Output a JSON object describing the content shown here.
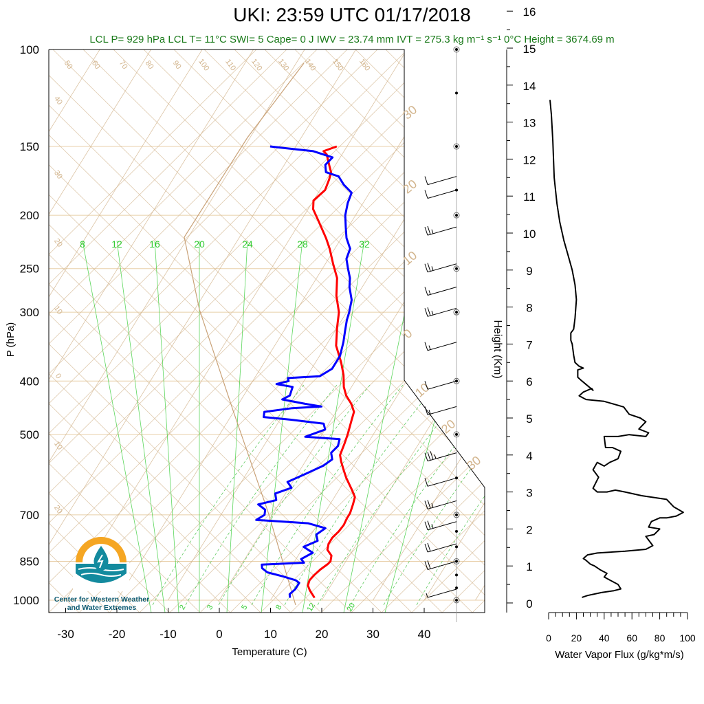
{
  "title": "UKI: 23:59 UTC 01/17/2018",
  "subtitle": "LCL P= 929 hPa  LCL T= 11°C  SWI= 5  Cape= 0 J  IWV = 23.74 mm  IVT = 275.3 kg m⁻¹ s⁻¹  0°C Height = 3674.69 m",
  "logo": {
    "line1": "Center for Western Weather",
    "line2": "and Water Extremes"
  },
  "colors": {
    "temperature": "#ff0000",
    "dewpoint": "#0000ff",
    "mixing_ratio": "#33cc33",
    "dry_adiabat": "#d2b48c",
    "flux": "#000000"
  },
  "chart_data": [
    {
      "type": "line",
      "title": "UKI: 23:59 UTC 01/17/2018",
      "xlabel": "Temperature (C)",
      "ylabel": "P (hPa)",
      "x_ticks": [
        "-30",
        "-20",
        "-10",
        "0",
        "10",
        "20",
        "30",
        "40"
      ],
      "y_ticks": [
        {
          "p": 100,
          "label": "100"
        },
        {
          "p": 150,
          "label": "150"
        },
        {
          "p": 200,
          "label": "200"
        },
        {
          "p": 250,
          "label": "250"
        },
        {
          "p": 300,
          "label": "300"
        },
        {
          "p": 400,
          "label": "400"
        },
        {
          "p": 500,
          "label": "500"
        },
        {
          "p": 700,
          "label": "700"
        },
        {
          "p": 850,
          "label": "850"
        },
        {
          "p": 1000,
          "label": "1000"
        }
      ],
      "ylim": [
        1000,
        100
      ],
      "xlim": [
        -35,
        50
      ],
      "isotherm_labels": [
        "50",
        "60",
        "70",
        "80",
        "90",
        "100",
        "110",
        "120",
        "130",
        "140",
        "150",
        "160"
      ],
      "isotherm_left_labels": [
        "40",
        "30",
        "20",
        "10",
        "0",
        "10",
        "20"
      ],
      "isotherm_right_labels": [
        "30",
        "20",
        "10",
        "0",
        "10",
        "20",
        "30"
      ],
      "mixing_ratio_top_labels": [
        "8",
        "12",
        "16",
        "20",
        "24",
        "28",
        "32"
      ],
      "mixing_ratio_bottom_labels": [
        "2",
        "3",
        "5",
        "8",
        "12",
        "20"
      ],
      "series": [
        {
          "name": "Temperature",
          "points": [
            [
              18.3,
              990
            ],
            [
              16.5,
              960
            ],
            [
              15.5,
              940
            ],
            [
              15.2,
              920
            ],
            [
              15.5,
              900
            ],
            [
              16.0,
              880
            ],
            [
              16.8,
              860
            ],
            [
              17.0,
              850
            ],
            [
              16.5,
              830
            ],
            [
              15.0,
              810
            ],
            [
              14.5,
              790
            ],
            [
              14.5,
              770
            ],
            [
              15.0,
              750
            ],
            [
              15.2,
              730
            ],
            [
              15.0,
              710
            ],
            [
              15.0,
              695
            ],
            [
              14.5,
              670
            ],
            [
              14.0,
              650
            ],
            [
              12.5,
              630
            ],
            [
              10.0,
              600
            ],
            [
              8.5,
              580
            ],
            [
              7.0,
              560
            ],
            [
              6.0,
              545
            ],
            [
              5.5,
              520
            ],
            [
              5.0,
              500
            ],
            [
              4.0,
              470
            ],
            [
              3.5,
              455
            ],
            [
              2.0,
              440
            ],
            [
              0.0,
              425
            ],
            [
              -1.5,
              410
            ],
            [
              -3.0,
              390
            ],
            [
              -5.0,
              370
            ],
            [
              -8.0,
              345
            ],
            [
              -10.0,
              320
            ],
            [
              -11.5,
              300
            ],
            [
              -14.0,
              280
            ],
            [
              -16.0,
              260
            ],
            [
              -18.5,
              245
            ],
            [
              -21.0,
              230
            ],
            [
              -23.0,
              220
            ],
            [
              -26.5,
              205
            ],
            [
              -29.0,
              195
            ],
            [
              -30.0,
              188
            ],
            [
              -29.0,
              180
            ],
            [
              -29.5,
              172
            ],
            [
              -30.0,
              167
            ],
            [
              -31.0,
              163
            ],
            [
              -33.0,
              155
            ],
            [
              -34.0,
              153
            ],
            [
              -32.0,
              150
            ]
          ]
        },
        {
          "name": "Dew Point",
          "points": [
            [
              13.5,
              990
            ],
            [
              13.0,
              975
            ],
            [
              13.5,
              955
            ],
            [
              13.5,
              930
            ],
            [
              12.5,
              920
            ],
            [
              9.5,
              905
            ],
            [
              6.0,
              890
            ],
            [
              4.5,
              875
            ],
            [
              4.0,
              862
            ],
            [
              12.0,
              855
            ],
            [
              11.0,
              842
            ],
            [
              12.5,
              820
            ],
            [
              10.0,
              800
            ],
            [
              12.0,
              780
            ],
            [
              11.0,
              760
            ],
            [
              12.0,
              740
            ],
            [
              8.0,
              725
            ],
            [
              3.0,
              720
            ],
            [
              -2.5,
              715
            ],
            [
              -1.5,
              700
            ],
            [
              -2.0,
              685
            ],
            [
              -4.0,
              670
            ],
            [
              -1.0,
              658
            ],
            [
              -2.0,
              640
            ],
            [
              0.5,
              625
            ],
            [
              -1.0,
              610
            ],
            [
              1.5,
              590
            ],
            [
              4.0,
              570
            ],
            [
              5.0,
              555
            ],
            [
              4.0,
              540
            ],
            [
              4.5,
              525
            ],
            [
              4.0,
              510
            ],
            [
              -3.0,
              505
            ],
            [
              0.0,
              490
            ],
            [
              -1.0,
              478
            ],
            [
              -8.0,
              470
            ],
            [
              -13.5,
              465
            ],
            [
              -14.0,
              455
            ],
            [
              -9.0,
              448
            ],
            [
              -3.5,
              445
            ],
            [
              -7.0,
              440
            ],
            [
              -12.0,
              432
            ],
            [
              -11.0,
              425
            ],
            [
              -11.5,
              410
            ],
            [
              -15.0,
              405
            ],
            [
              -13.0,
              400
            ],
            [
              -13.5,
              395
            ],
            [
              -7.5,
              392
            ],
            [
              -6.0,
              380
            ],
            [
              -6.0,
              360
            ],
            [
              -7.0,
              340
            ],
            [
              -8.0,
              325
            ],
            [
              -9.0,
              310
            ],
            [
              -9.5,
              300
            ],
            [
              -10.5,
              285
            ],
            [
              -12.5,
              270
            ],
            [
              -13.5,
              260
            ],
            [
              -15.0,
              250
            ],
            [
              -16.5,
              240
            ],
            [
              -17.0,
              230
            ],
            [
              -19.0,
              220
            ],
            [
              -20.5,
              210
            ],
            [
              -22.0,
              200
            ],
            [
              -23.0,
              190
            ],
            [
              -23.5,
              182
            ],
            [
              -26.0,
              176
            ],
            [
              -28.0,
              170
            ],
            [
              -31.0,
              167
            ],
            [
              -32.0,
              162
            ],
            [
              -31.5,
              157
            ],
            [
              -36.0,
              153
            ],
            [
              -42.0,
              151
            ],
            [
              -45.0,
              150
            ]
          ]
        }
      ],
      "wind_barbs": [
        {
          "p": 955,
          "speed": 5,
          "dir": 330
        },
        {
          "p": 850,
          "speed": 20,
          "dir": 255
        },
        {
          "p": 790,
          "speed": 20,
          "dir": 260
        },
        {
          "p": 720,
          "speed": 25,
          "dir": 260
        },
        {
          "p": 660,
          "speed": 25,
          "dir": 260
        },
        {
          "p": 600,
          "speed": 10,
          "dir": 245
        },
        {
          "p": 540,
          "speed": 35,
          "dir": 260
        },
        {
          "p": 445,
          "speed": 15,
          "dir": 245
        },
        {
          "p": 400,
          "speed": 10,
          "dir": 240
        },
        {
          "p": 340,
          "speed": 15,
          "dir": 245
        },
        {
          "p": 295,
          "speed": 25,
          "dir": 255
        },
        {
          "p": 270,
          "speed": 15,
          "dir": 245
        },
        {
          "p": 245,
          "speed": 25,
          "dir": 250
        },
        {
          "p": 210,
          "speed": 25,
          "dir": 250
        },
        {
          "p": 180,
          "speed": 10,
          "dir": 255
        },
        {
          "p": 170,
          "speed": 10,
          "dir": 240
        }
      ]
    },
    {
      "type": "line",
      "xlabel": "Water Vapor Flux (g/kg*m/s)",
      "ylabel": "Height (Km)",
      "xlim": [
        0,
        100
      ],
      "ylim": [
        0,
        16.4
      ],
      "x_ticks": [
        "0",
        "20",
        "40",
        "60",
        "80",
        "100"
      ],
      "y_ticks": [
        "0",
        "1",
        "2",
        "3",
        "4",
        "5",
        "6",
        "7",
        "8",
        "9",
        "10",
        "11",
        "12",
        "13",
        "14",
        "15",
        "16"
      ],
      "series": [
        {
          "name": "Water Vapor Flux",
          "points": [
            [
              24,
              0.15
            ],
            [
              28,
              0.2
            ],
            [
              38,
              0.28
            ],
            [
              47,
              0.33
            ],
            [
              52,
              0.38
            ],
            [
              50,
              0.5
            ],
            [
              45,
              0.6
            ],
            [
              40,
              0.7
            ],
            [
              42,
              0.8
            ],
            [
              37,
              0.9
            ],
            [
              33,
              1.0
            ],
            [
              30,
              1.05
            ],
            [
              27,
              1.15
            ],
            [
              25,
              1.2
            ],
            [
              28,
              1.3
            ],
            [
              35,
              1.35
            ],
            [
              55,
              1.4
            ],
            [
              70,
              1.45
            ],
            [
              75,
              1.55
            ],
            [
              72,
              1.7
            ],
            [
              70,
              1.8
            ],
            [
              76,
              1.85
            ],
            [
              80,
              2.0
            ],
            [
              72,
              2.05
            ],
            [
              74,
              2.2
            ],
            [
              80,
              2.3
            ],
            [
              85,
              2.3
            ],
            [
              92,
              2.35
            ],
            [
              97,
              2.45
            ],
            [
              90,
              2.6
            ],
            [
              85,
              2.8
            ],
            [
              67,
              2.9
            ],
            [
              55,
              3.0
            ],
            [
              48,
              3.05
            ],
            [
              42,
              3.0
            ],
            [
              35,
              3.0
            ],
            [
              32,
              3.1
            ],
            [
              36,
              3.4
            ],
            [
              32,
              3.6
            ],
            [
              35,
              3.8
            ],
            [
              40,
              3.7
            ],
            [
              44,
              3.8
            ],
            [
              50,
              3.9
            ],
            [
              52,
              4.1
            ],
            [
              46,
              4.2
            ],
            [
              41,
              4.2
            ],
            [
              40,
              4.5
            ],
            [
              50,
              4.5
            ],
            [
              58,
              4.55
            ],
            [
              70,
              4.5
            ],
            [
              72,
              4.6
            ],
            [
              65,
              4.7
            ],
            [
              70,
              4.9
            ],
            [
              66,
              5.0
            ],
            [
              58,
              5.1
            ],
            [
              54,
              5.3
            ],
            [
              40,
              5.45
            ],
            [
              27,
              5.5
            ],
            [
              22,
              5.6
            ],
            [
              25,
              5.7
            ],
            [
              31,
              5.8
            ],
            [
              32,
              5.75
            ],
            [
              24,
              6.0
            ],
            [
              21,
              6.1
            ],
            [
              21,
              6.3
            ],
            [
              25,
              6.35
            ],
            [
              22,
              6.4
            ],
            [
              19,
              6.5
            ],
            [
              18,
              6.7
            ],
            [
              17,
              7.0
            ],
            [
              16,
              7.1
            ],
            [
              16,
              7.3
            ],
            [
              18,
              7.4
            ],
            [
              19,
              7.7
            ],
            [
              20,
              8.2
            ],
            [
              19,
              8.6
            ],
            [
              17,
              9.0
            ],
            [
              14,
              9.4
            ],
            [
              11,
              9.8
            ],
            [
              8,
              10.3
            ],
            [
              6,
              10.8
            ],
            [
              4,
              11.5
            ],
            [
              3,
              12.5
            ],
            [
              2,
              13.2
            ],
            [
              1,
              13.6
            ]
          ]
        }
      ]
    }
  ]
}
